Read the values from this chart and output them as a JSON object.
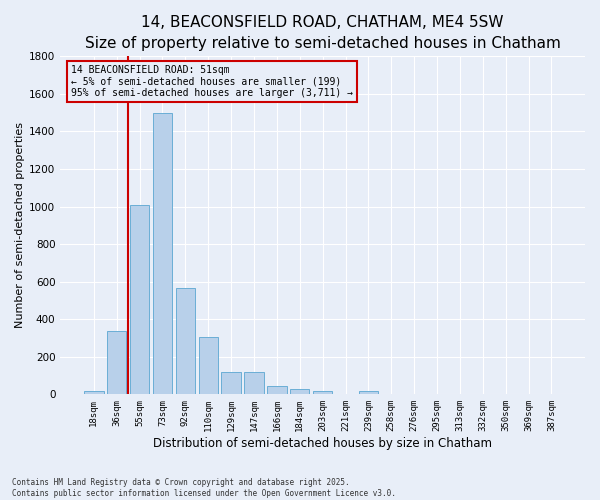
{
  "title1": "14, BEACONSFIELD ROAD, CHATHAM, ME4 5SW",
  "title2": "Size of property relative to semi-detached houses in Chatham",
  "xlabel": "Distribution of semi-detached houses by size in Chatham",
  "ylabel": "Number of semi-detached properties",
  "bar_color": "#b8d0ea",
  "bar_edge_color": "#6aaed6",
  "categories": [
    "18sqm",
    "36sqm",
    "55sqm",
    "73sqm",
    "92sqm",
    "110sqm",
    "129sqm",
    "147sqm",
    "166sqm",
    "184sqm",
    "203sqm",
    "221sqm",
    "239sqm",
    "258sqm",
    "276sqm",
    "295sqm",
    "313sqm",
    "332sqm",
    "350sqm",
    "369sqm",
    "387sqm"
  ],
  "values": [
    20,
    335,
    1010,
    1500,
    565,
    305,
    120,
    120,
    45,
    30,
    20,
    0,
    20,
    0,
    0,
    0,
    0,
    0,
    0,
    0,
    0
  ],
  "ylim": [
    0,
    1800
  ],
  "yticks": [
    0,
    200,
    400,
    600,
    800,
    1000,
    1200,
    1400,
    1600,
    1800
  ],
  "vline_x": 1.5,
  "vline_color": "#cc0000",
  "annotation_title": "14 BEACONSFIELD ROAD: 51sqm",
  "annotation_line1": "← 5% of semi-detached houses are smaller (199)",
  "annotation_line2": "95% of semi-detached houses are larger (3,711) →",
  "annotation_box_color": "#cc0000",
  "footer1": "Contains HM Land Registry data © Crown copyright and database right 2025.",
  "footer2": "Contains public sector information licensed under the Open Government Licence v3.0.",
  "background_color": "#e8eef8",
  "grid_color": "#ffffff",
  "title1_fontsize": 11,
  "title2_fontsize": 9,
  "ylabel_fontsize": 8,
  "xlabel_fontsize": 8.5
}
